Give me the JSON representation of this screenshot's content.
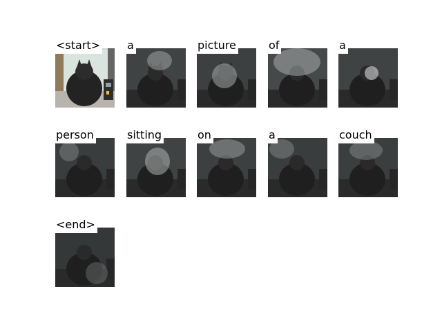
{
  "tokens": [
    {
      "word": "<start>",
      "focus": "none"
    },
    {
      "word": "a",
      "focus": "head"
    },
    {
      "word": "picture",
      "focus": "head"
    },
    {
      "word": "of",
      "focus": "top"
    },
    {
      "word": "a",
      "focus": "right-of-head"
    },
    {
      "word": "person",
      "focus": "left"
    },
    {
      "word": "sitting",
      "focus": "head"
    },
    {
      "word": "on",
      "focus": "top"
    },
    {
      "word": "a",
      "focus": "top-left"
    },
    {
      "word": "couch",
      "focus": "top"
    },
    {
      "word": "<end>",
      "focus": "bottom-right"
    }
  ]
}
